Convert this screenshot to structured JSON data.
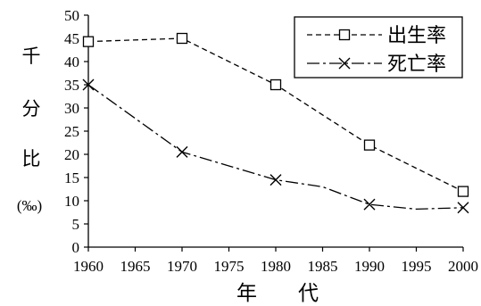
{
  "chart_data": {
    "type": "line",
    "x": [
      1960,
      1970,
      1980,
      1990,
      2000
    ],
    "x_ticks": [
      1960,
      1965,
      1970,
      1975,
      1980,
      1985,
      1990,
      1995,
      2000
    ],
    "y_ticks": [
      0,
      5,
      10,
      15,
      20,
      25,
      30,
      35,
      40,
      45,
      50
    ],
    "xlim": [
      1960,
      2000
    ],
    "ylim": [
      0,
      50
    ],
    "xlabel": "年　　代",
    "ylabel_chars": [
      "千",
      "分",
      "比"
    ],
    "ylabel_unit": "(‰)",
    "legend_position": "top-right",
    "grid": false,
    "series": [
      {
        "name": "出生率",
        "marker": "square",
        "line_style": "dashed",
        "color": "#000000",
        "x": [
          1960,
          1970,
          1980,
          1990,
          2000
        ],
        "values": [
          44.3,
          45.0,
          35.0,
          22.0,
          12.0
        ]
      },
      {
        "name": "死亡率",
        "marker": "x",
        "line_style": "dash-dot",
        "color": "#000000",
        "x": [
          1960,
          1970,
          1975,
          1980,
          1985,
          1990,
          1995,
          2000
        ],
        "values": [
          35.0,
          20.5,
          17.5,
          14.5,
          13.0,
          9.2,
          8.2,
          8.5
        ],
        "marker_x": [
          1960,
          1970,
          1980,
          1990,
          2000
        ]
      }
    ]
  }
}
